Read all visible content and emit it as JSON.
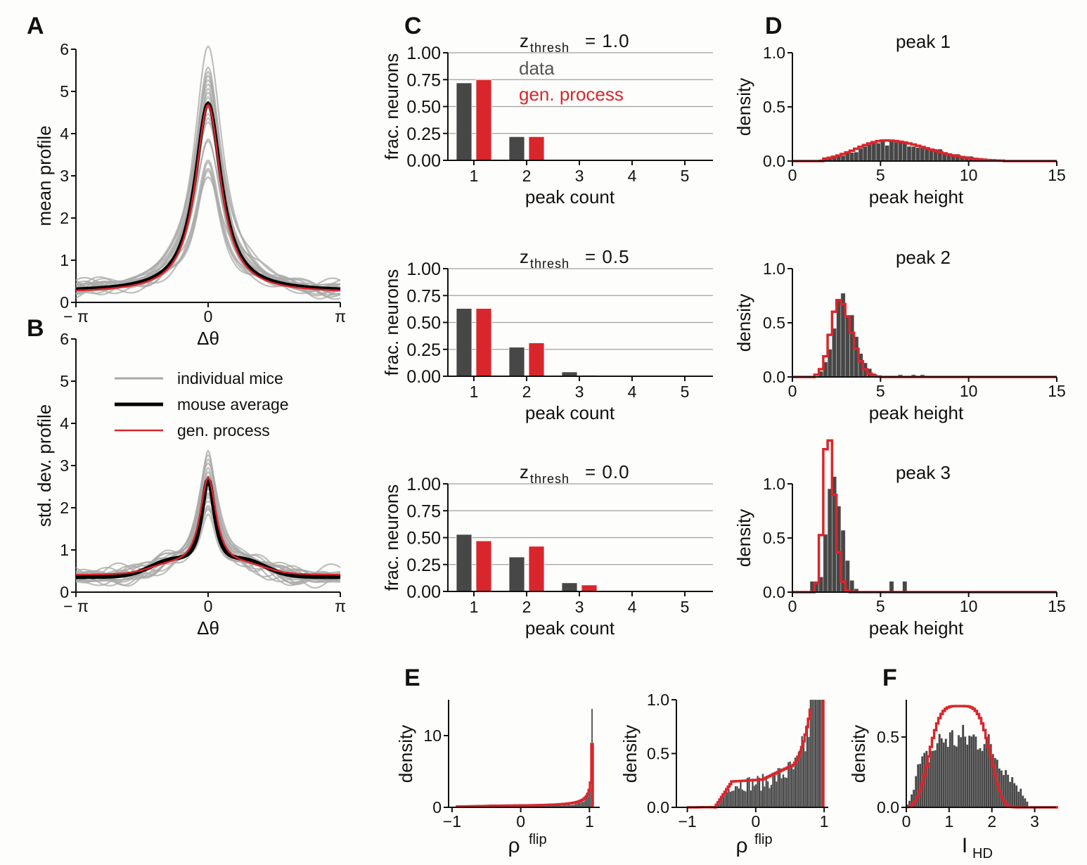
{
  "colors": {
    "data": "#474747",
    "gen": "#d9262c",
    "mice": "#a8a8a8",
    "avg": "#000000",
    "grid": "#a0a0a0"
  },
  "panel_labels": {
    "A": "A",
    "B": "B",
    "C": "C",
    "D": "D",
    "E": "E",
    "F": "F"
  },
  "chart_data": [
    {
      "id": "A",
      "type": "line",
      "xlabel": "Δθ",
      "ylabel": "mean profile",
      "xticks": [
        "− π",
        "0",
        "π"
      ],
      "yticks": [
        "0",
        "1",
        "2",
        "3",
        "4",
        "5",
        "6"
      ],
      "xlim": [
        -3.1416,
        3.1416
      ],
      "ylim": [
        0,
        6
      ],
      "series": [
        {
          "name": "individual mice",
          "kind": "lorentz-family",
          "baseline": 0.25,
          "peaks": [
            6.05,
            5.55,
            5.45,
            5.35,
            5.25,
            5.15,
            5.05,
            4.95,
            4.85,
            4.6,
            4.45,
            4.35,
            4.25,
            3.85,
            3.8,
            3.35,
            3.3,
            3.15,
            3.1,
            2.95
          ]
        },
        {
          "name": "mouse average",
          "peak": 4.72,
          "baseline": 0.25
        },
        {
          "name": "gen. process",
          "peak": 4.68,
          "baseline": 0.22
        }
      ]
    },
    {
      "id": "B",
      "type": "line",
      "xlabel": "Δθ",
      "ylabel": "std. dev. profile",
      "xticks": [
        "− π",
        "0",
        "π"
      ],
      "yticks": [
        "0",
        "1",
        "2",
        "3",
        "4",
        "5",
        "6"
      ],
      "xlim": [
        -3.1416,
        3.1416
      ],
      "ylim": [
        0,
        6
      ],
      "legend": {
        "placement": "upper-center",
        "entries": [
          "individual mice",
          "mouse average",
          "gen. process"
        ]
      },
      "series": [
        {
          "name": "individual mice",
          "baseline": 0.35,
          "peaks": [
            3.3,
            3.2,
            3.1,
            3.0,
            2.9,
            2.8,
            2.7,
            2.6,
            2.5,
            2.4,
            2.3,
            2.25,
            2.2,
            2.1,
            2.0,
            1.95,
            1.9,
            1.8
          ]
        },
        {
          "name": "mouse average",
          "peak": 2.6,
          "baseline": 0.35
        },
        {
          "name": "gen. process",
          "peak": 2.67,
          "baseline": 0.4
        }
      ]
    },
    {
      "id": "C1",
      "type": "bar",
      "title": "z",
      "title_sub": "thresh",
      "title_value": "= 1.0",
      "xlabel": "peak count",
      "ylabel": "frac. neurons",
      "categories": [
        "1",
        "2",
        "3",
        "4",
        "5"
      ],
      "yticks": [
        "0.00",
        "0.25",
        "0.50",
        "0.75",
        "1.00"
      ],
      "ylim": [
        0,
        1
      ],
      "legend": {
        "placement": "top-center",
        "entries": [
          "data",
          "gen. process"
        ]
      },
      "series": [
        {
          "name": "data",
          "values": [
            0.72,
            0.22,
            0.005,
            0,
            0
          ]
        },
        {
          "name": "gen. process",
          "values": [
            0.75,
            0.22,
            0,
            0,
            0
          ]
        }
      ]
    },
    {
      "id": "C2",
      "type": "bar",
      "title": "z",
      "title_sub": "thresh",
      "title_value": "= 0.5",
      "xlabel": "peak count",
      "ylabel": "frac. neurons",
      "categories": [
        "1",
        "2",
        "3",
        "4",
        "5"
      ],
      "yticks": [
        "0.00",
        "0.25",
        "0.50",
        "0.75",
        "1.00"
      ],
      "ylim": [
        0,
        1
      ],
      "series": [
        {
          "name": "data",
          "values": [
            0.63,
            0.27,
            0.04,
            0,
            0
          ]
        },
        {
          "name": "gen. process",
          "values": [
            0.63,
            0.31,
            0.01,
            0,
            0
          ]
        }
      ]
    },
    {
      "id": "C3",
      "type": "bar",
      "title": "z",
      "title_sub": "thresh",
      "title_value": "= 0.0",
      "xlabel": "peak count",
      "ylabel": "frac. neurons",
      "categories": [
        "1",
        "2",
        "3",
        "4",
        "5"
      ],
      "yticks": [
        "0.00",
        "0.25",
        "0.50",
        "0.75",
        "1.00"
      ],
      "ylim": [
        0,
        1
      ],
      "series": [
        {
          "name": "data",
          "values": [
            0.53,
            0.32,
            0.08,
            0.005,
            0
          ]
        },
        {
          "name": "gen. process",
          "values": [
            0.47,
            0.42,
            0.06,
            0,
            0
          ]
        }
      ]
    },
    {
      "id": "D1",
      "type": "histogram",
      "title": "peak 1",
      "xlabel": "peak height",
      "ylabel": "density",
      "xticks": [
        "0",
        "5",
        "10",
        "15"
      ],
      "yticks": [
        "0.0",
        "0.5",
        "1.0"
      ],
      "xlim": [
        0,
        15
      ],
      "ylim": [
        0,
        1
      ],
      "data_dist": {
        "mean": 5.6,
        "sd": 2.1,
        "peak_density": 0.17,
        "min": 1.5,
        "max": 11
      },
      "gen_dist": {
        "mean": 5.3,
        "sd": 1.9,
        "peak_density": 0.19,
        "min": 1.8,
        "max": 12
      }
    },
    {
      "id": "D2",
      "type": "histogram",
      "title": "peak 2",
      "xlabel": "peak height",
      "ylabel": "density",
      "xticks": [
        "0",
        "5",
        "10",
        "15"
      ],
      "yticks": [
        "0.0",
        "0.5",
        "1.0"
      ],
      "xlim": [
        0,
        15
      ],
      "ylim": [
        0,
        1
      ],
      "data_dist": {
        "mean": 2.8,
        "sd": 0.6,
        "peak_density": 0.68,
        "min": 1.5,
        "max": 7.5
      },
      "gen_dist": {
        "mean": 2.65,
        "sd": 0.55,
        "peak_density": 0.71,
        "min": 1.3,
        "max": 5
      }
    },
    {
      "id": "D3",
      "type": "histogram",
      "title": "peak 3",
      "xlabel": "peak height",
      "ylabel": "density",
      "xticks": [
        "0",
        "5",
        "10",
        "15"
      ],
      "yticks": [
        "0.0",
        "0.5",
        "1.0"
      ],
      "xlim": [
        0,
        15
      ],
      "ylim": [
        0,
        1
      ],
      "data_dist": {
        "mean": 2.3,
        "sd": 0.4,
        "peak_density": 1.0,
        "min": 1.0,
        "max": 6.3
      },
      "gen_dist": {
        "mean": 2.0,
        "sd": 0.3,
        "peak_density": 1.48,
        "min": 1.3,
        "max": 3.3
      }
    },
    {
      "id": "E1",
      "type": "histogram",
      "xlabel": "ρ",
      "xlabel_sup": "flip",
      "ylabel": "density",
      "xticks": [
        "−1",
        "0",
        "1"
      ],
      "yticks": [
        "0",
        "10"
      ],
      "xlim": [
        -1.1,
        1.1
      ],
      "ylim": [
        0,
        15
      ],
      "data_peak": 14,
      "gen_peak": 8.8
    },
    {
      "id": "E2",
      "type": "histogram",
      "xlabel": "ρ",
      "xlabel_sup": "flip",
      "ylabel": "density",
      "xticks": [
        "−1",
        "0",
        "1"
      ],
      "yticks": [
        "0.0",
        "0.5",
        "1.0"
      ],
      "xlim": [
        -1.1,
        1.1
      ],
      "ylim": [
        0,
        1
      ]
    },
    {
      "id": "F",
      "type": "histogram",
      "xlabel": "I",
      "xlabel_sub": "HD",
      "ylabel": "density",
      "xticks": [
        "0",
        "1",
        "2",
        "3"
      ],
      "yticks": [
        "0.0",
        "0.5"
      ],
      "xlim": [
        0,
        3.5
      ],
      "ylim": [
        0,
        0.75
      ],
      "data_dist": {
        "mean": 1.3,
        "peak_density": 0.62
      },
      "gen_dist": {
        "mean": 1.25,
        "sd": 0.55,
        "peak_density": 0.72
      }
    }
  ]
}
